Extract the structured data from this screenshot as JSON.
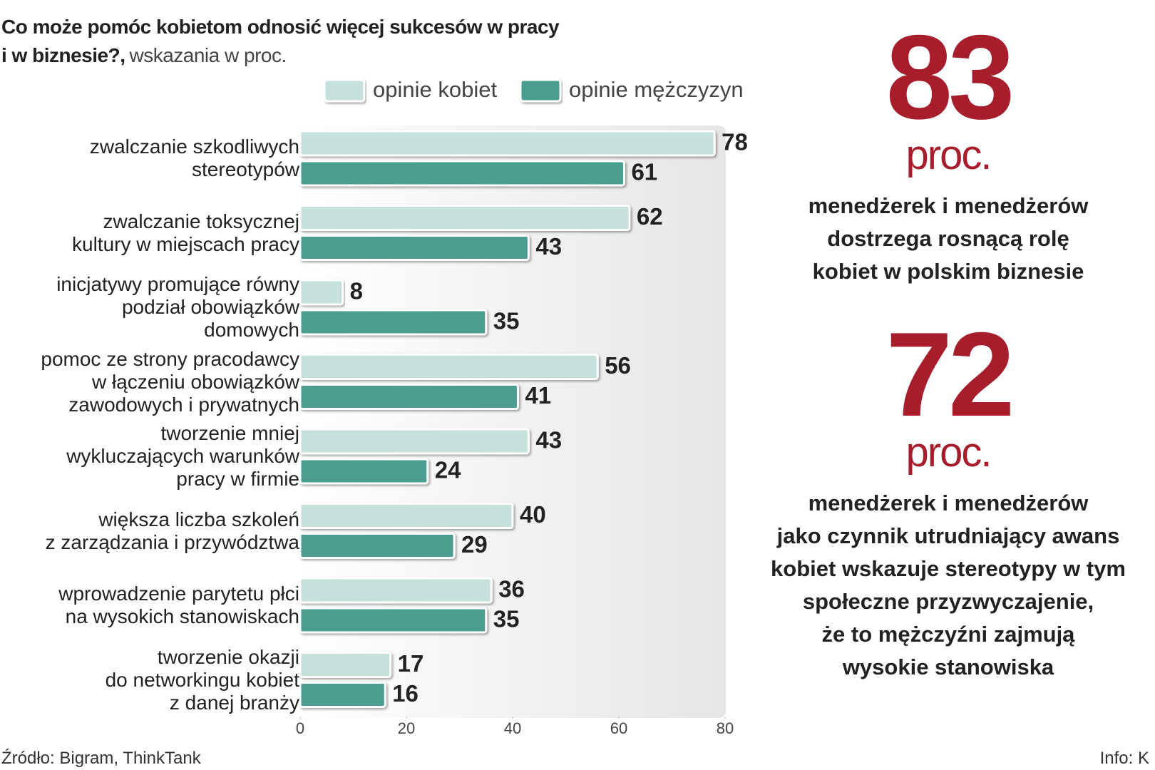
{
  "chart_data": {
    "type": "hbar",
    "title": "Co może pomóc kobietom odnosić więcej sukcesów w pracy\ni w biznesie?,",
    "subtitle": "wskazania w proc.",
    "categories": [
      "zwalczanie szkodliwych\nstereotypów",
      "zwalczanie toksycznej\nkultury w miejscach pracy",
      "inicjatywy promujące równy\npodział  obowiązków\ndomowych",
      "pomoc ze strony pracodawcy\nw łączeniu obowiązków\nzawodowych i prywatnych",
      "tworzenie mniej\nwykluczających warunków\npracy w firmie",
      "większa liczba szkoleń\nz zarządzania i przywództwa",
      "wprowadzenie parytetu płci\nna wysokich stanowiskach",
      "tworzenie okazji\ndo networkingu kobiet\nz danej branży"
    ],
    "series": [
      {
        "name": "opinie kobiet",
        "color": "#c6e1dc",
        "values": [
          78,
          62,
          8,
          56,
          43,
          40,
          36,
          17
        ]
      },
      {
        "name": "opinie mężczyzyn",
        "color": "#4b9d90",
        "values": [
          61,
          43,
          35,
          41,
          24,
          29,
          35,
          16
        ]
      }
    ],
    "xlim": [
      0,
      80
    ],
    "xticks": [
      0,
      20,
      40,
      60,
      80
    ],
    "source": "Źródło: Bigram, ThinkTank",
    "credit": "Info: K"
  },
  "highlights": [
    {
      "number": "83",
      "unit": "proc.",
      "text": "menedżerek i menedżerów\ndostrzega rosnącą rolę\nkobiet w polskim biznesie"
    },
    {
      "number": "72",
      "unit": "proc.",
      "text": "menedżerek i menedżerów\njako czynnik utrudniający awans\nkobiet wskazuje stereotypy w tym\nspołeczne przyzwyczajenie,\nże to mężczyźni zajmują\nwysokie stanowiska"
    }
  ]
}
